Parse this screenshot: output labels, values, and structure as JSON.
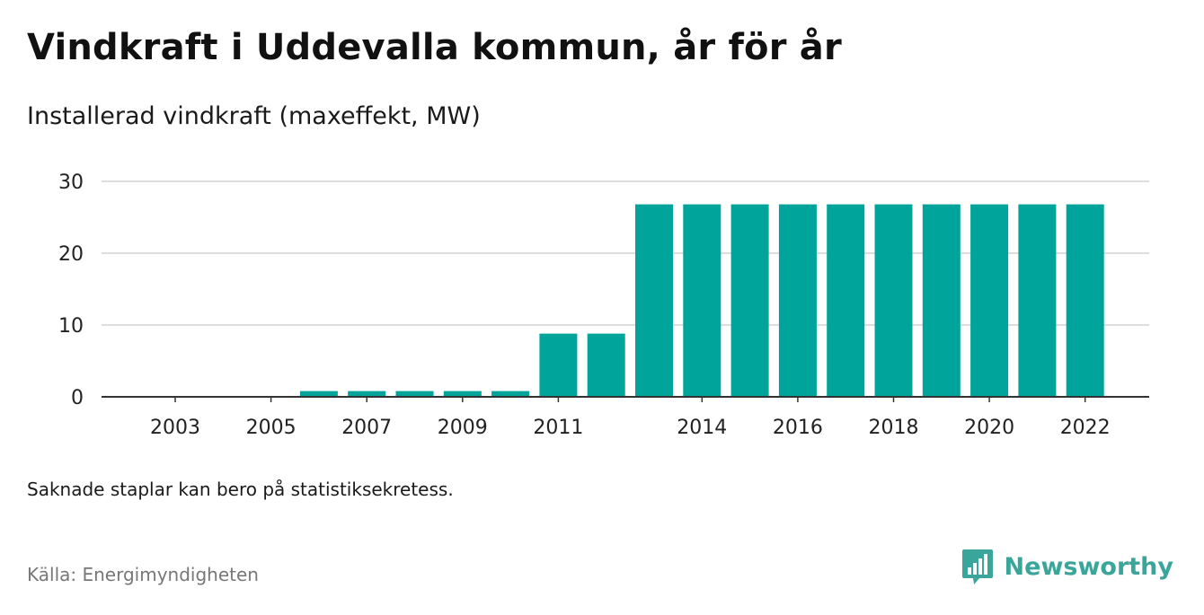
{
  "title": "Vindkraft i Uddevalla kommun, år för år",
  "subtitle": "Installerad vindkraft (maxeffekt, MW)",
  "note": "Saknade staplar kan bero på statistiksekretess.",
  "source": "Källa: Energimyndigheten",
  "brand": {
    "name": "Newsworthy",
    "icon": "newsworthy-logo-icon",
    "color": "#3aa59a"
  },
  "chart_data": {
    "type": "bar",
    "categories": [
      "2003",
      "2004",
      "2005",
      "2006",
      "2007",
      "2008",
      "2009",
      "2010",
      "2011",
      "2012",
      "2013",
      "2014",
      "2015",
      "2016",
      "2017",
      "2018",
      "2019",
      "2020",
      "2021",
      "2022"
    ],
    "values": [
      null,
      null,
      null,
      0.8,
      0.8,
      0.8,
      0.8,
      0.8,
      8.8,
      8.8,
      26.8,
      26.8,
      26.8,
      26.8,
      26.8,
      26.8,
      26.8,
      26.8,
      26.8,
      26.8
    ],
    "x_tick_labels": [
      "2003",
      "2005",
      "2007",
      "2009",
      "2011",
      "2014",
      "2016",
      "2018",
      "2020",
      "2022"
    ],
    "y_ticks": [
      0,
      10,
      20,
      30
    ],
    "ylim": [
      0,
      30
    ],
    "grid": true,
    "bar_color": "#00a49a"
  }
}
